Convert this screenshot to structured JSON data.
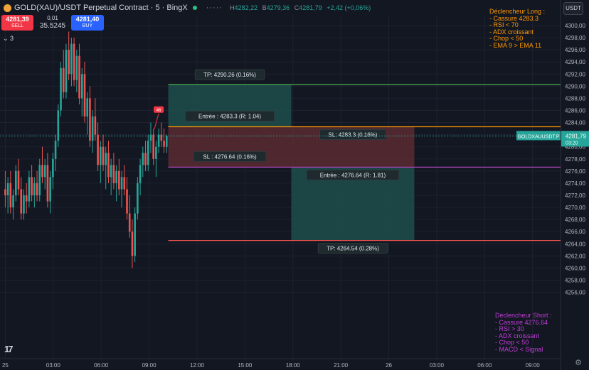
{
  "header": {
    "symbol": "GOLD(XAU)/USDT Perpetual Contract · 5 · BingX",
    "more": "·····",
    "ohlc": [
      {
        "k": "H",
        "v": "4282,22"
      },
      {
        "k": "B",
        "v": "4279,36"
      },
      {
        "k": "C",
        "v": "4281,79"
      },
      {
        "k": "",
        "v": "+2,42 (+0,06%)"
      }
    ]
  },
  "trade": {
    "sell_price": "4281,39",
    "sell_label": "SELL",
    "spread_top": "0,01",
    "spread_value": "35.5245",
    "buy_price": "4281,40",
    "buy_label": "BUY"
  },
  "indicators_collapsed": "⌄ 3",
  "currency": "USDT",
  "chart_data": {
    "type": "candlestick",
    "y_axis": {
      "min": 4255,
      "max": 4301,
      "side": "right",
      "ticks": [
        4300,
        4298,
        4296,
        4294,
        4292,
        4290,
        4288,
        4286,
        4284,
        4282,
        4280,
        4278,
        4276,
        4274,
        4272,
        4270,
        4268,
        4266,
        4264,
        4262,
        4260,
        4258,
        4256
      ],
      "tick_labels": [
        "4300,00",
        "4298,00",
        "4296,00",
        "4294,00",
        "4292,00",
        "4290,00",
        "4288,00",
        "4286,00",
        "4284,00",
        "4282,00",
        "4280,00",
        "4278,00",
        "4276,00",
        "4274,00",
        "4272,00",
        "4270,00",
        "4268,00",
        "4266,00",
        "4264,00",
        "4262,00",
        "4260,00",
        "4258,00",
        "4256,00"
      ]
    },
    "x_axis": {
      "min": -0.33,
      "max": 34.75,
      "unit": "hours from 25 00:00",
      "ticks": [
        0,
        3,
        6,
        9,
        12,
        15,
        18,
        21,
        24,
        27,
        30,
        33
      ],
      "tick_labels": [
        "25",
        "03:00",
        "06:00",
        "09:00",
        "12:00",
        "15:00",
        "18:00",
        "21:00",
        "26",
        "03:00",
        "06:00",
        "09:00"
      ]
    },
    "grid": true,
    "candles_ohlc": [
      [
        4273,
        4276,
        4270,
        4272
      ],
      [
        4272,
        4275,
        4269,
        4274
      ],
      [
        4274,
        4276,
        4269,
        4270
      ],
      [
        4270,
        4273,
        4268,
        4272
      ],
      [
        4272,
        4277,
        4271,
        4276
      ],
      [
        4276,
        4278,
        4272,
        4273
      ],
      [
        4273,
        4275,
        4268,
        4269
      ],
      [
        4269,
        4273,
        4268,
        4272
      ],
      [
        4272,
        4274,
        4269,
        4271
      ],
      [
        4271,
        4276,
        4270,
        4275
      ],
      [
        4275,
        4277,
        4271,
        4272
      ],
      [
        4272,
        4275,
        4270,
        4274
      ],
      [
        4274,
        4276,
        4271,
        4272
      ],
      [
        4272,
        4278,
        4271,
        4277
      ],
      [
        4277,
        4280,
        4274,
        4275
      ],
      [
        4275,
        4278,
        4273,
        4277
      ],
      [
        4277,
        4279,
        4270,
        4271
      ],
      [
        4271,
        4276,
        4269,
        4275
      ],
      [
        4275,
        4279,
        4273,
        4278
      ],
      [
        4278,
        4282,
        4276,
        4281
      ],
      [
        4281,
        4287,
        4280,
        4286
      ],
      [
        4286,
        4294,
        4285,
        4293
      ],
      [
        4293,
        4296,
        4288,
        4289
      ],
      [
        4289,
        4297,
        4288,
        4296
      ],
      [
        4296,
        4299,
        4291,
        4292
      ],
      [
        4292,
        4298,
        4290,
        4297
      ],
      [
        4297,
        4298,
        4290,
        4291
      ],
      [
        4291,
        4296,
        4289,
        4295
      ],
      [
        4295,
        4297,
        4287,
        4288
      ],
      [
        4288,
        4293,
        4285,
        4292
      ],
      [
        4292,
        4294,
        4284,
        4285
      ],
      [
        4285,
        4289,
        4282,
        4288
      ],
      [
        4288,
        4290,
        4280,
        4281
      ],
      [
        4281,
        4286,
        4279,
        4285
      ],
      [
        4285,
        4288,
        4281,
        4282
      ],
      [
        4282,
        4284,
        4276,
        4277
      ],
      [
        4277,
        4281,
        4274,
        4280
      ],
      [
        4280,
        4282,
        4276,
        4277
      ],
      [
        4277,
        4280,
        4273,
        4279
      ],
      [
        4279,
        4281,
        4274,
        4275
      ],
      [
        4275,
        4278,
        4272,
        4277
      ],
      [
        4277,
        4279,
        4273,
        4274
      ],
      [
        4274,
        4277,
        4271,
        4276
      ],
      [
        4276,
        4278,
        4272,
        4273
      ],
      [
        4273,
        4276,
        4270,
        4275
      ],
      [
        4275,
        4277,
        4272,
        4273
      ],
      [
        4273,
        4275,
        4268,
        4269
      ],
      [
        4269,
        4272,
        4265,
        4266
      ],
      [
        4266,
        4268,
        4260,
        4262
      ],
      [
        4262,
        4270,
        4261,
        4269
      ],
      [
        4269,
        4275,
        4268,
        4274
      ],
      [
        4274,
        4278,
        4272,
        4277
      ],
      [
        4277,
        4280,
        4275,
        4279
      ],
      [
        4279,
        4281,
        4276,
        4277
      ],
      [
        4277,
        4282,
        4276,
        4281
      ],
      [
        4281,
        4284,
        4279,
        4282
      ],
      [
        4282,
        4283,
        4277,
        4278
      ],
      [
        4278,
        4281,
        4275,
        4280
      ],
      [
        4280,
        4283,
        4279,
        4282
      ],
      [
        4282,
        4284,
        4280,
        4281
      ],
      [
        4281,
        4283,
        4279,
        4280
      ],
      [
        4280,
        4282,
        4279,
        4281.79
      ]
    ],
    "candle_x_start": 0,
    "candle_x_end": 10.1,
    "last_price": {
      "value": 4281.79,
      "symbol": "GOLDXAUUSDT.P",
      "price_label": "4281,79",
      "countdown": "03:20"
    },
    "alert_marker": {
      "x": 9.6,
      "y": 4286.2,
      "label": "46"
    },
    "long_position": {
      "x_start": 10.2,
      "x_end": 17.9,
      "entry": 4283.3,
      "tp": 4290.26,
      "sl": 4276.64,
      "tp_label": "TP: 4290.26 (0.16%)",
      "entry_label": "Entrée : 4283.3 (R: 1.04)",
      "sl_label": "SL : 4276.64 (0.16%)"
    },
    "short_position": {
      "x_start": 17.9,
      "x_end": 25.6,
      "entry": 4276.64,
      "tp": 4264.54,
      "sl": 4283.3,
      "sl_label": "SL: 4283.3 (0.16%)",
      "entry_label": "Entrée : 4276.64 (R: 1.81)",
      "tp_label": "TP: 4264.54 (0.28%)"
    },
    "colors": {
      "up": "#26a69a",
      "down": "#ef5350",
      "tp_line": "#4caf50",
      "entry_long": "#ff9800",
      "sl_line": "#ab47bc",
      "short_tp": "#ef5350",
      "profit_zone": "#1e4d4b",
      "loss_zone": "#5b2a31"
    }
  },
  "notes": {
    "long": "Déclencheur Long :\n- Cassure 4283.3\n- RSI < 70\n- ADX croissant\n- Chop < 50\n- EMA 9 > EMA 11",
    "short": "Déclencheur Short :\n- Cassure 4276.64\n- RSI > 30\n- ADX croissant\n- Chop < 50\n- MACD < Signal"
  }
}
